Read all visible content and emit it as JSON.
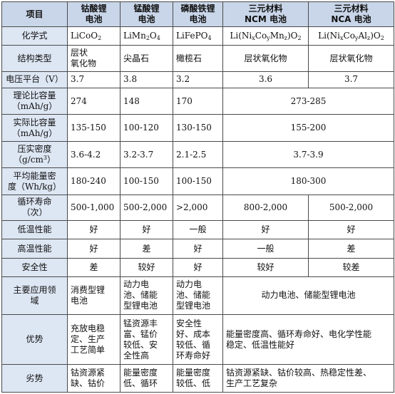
{
  "headers": {
    "item": "项目",
    "licoo2": [
      "钴酸锂",
      "电池"
    ],
    "limn2o4": [
      "锰酸锂",
      "电池"
    ],
    "lifepo4": [
      "磷酸铁锂",
      "电池"
    ],
    "ncm": [
      "三元材料",
      "NCM 电池"
    ],
    "nca": [
      "三元材料",
      "NCA 电池"
    ]
  },
  "formula": {
    "label": "化学式",
    "licoo2": [
      "LiCoO",
      "2",
      ""
    ],
    "limn2o4": [
      "LiMn",
      "2",
      "O",
      "4"
    ],
    "lifepo4": [
      "LiFePO",
      "4"
    ],
    "ncm": [
      "Li(Ni",
      "x",
      "Co",
      "y",
      "Mn",
      "z",
      ")O",
      "2"
    ],
    "nca": [
      "Li(Ni",
      "x",
      "Co",
      "y",
      "Al",
      "z",
      ")O",
      "2"
    ]
  },
  "structure": {
    "label": "结构类型",
    "licoo2": [
      "层状",
      "氧化物"
    ],
    "limn2o4": "尖晶石",
    "lifepo4": "橄榄石",
    "ncm": "层状氧化物",
    "nca": "层状氧化物"
  },
  "voltage": {
    "label": "电压平台（V）",
    "licoo2": "3.7",
    "limn2o4": "3.8",
    "lifepo4": "3.2",
    "ncm": "3.6",
    "nca": "3.7"
  },
  "theoretical_capacity": {
    "label": [
      "理论比容量",
      "（mAh/g）"
    ],
    "licoo2": "274",
    "limn2o4": "148",
    "lifepo4": "170",
    "ternary": "273-285"
  },
  "actual_capacity": {
    "label": [
      "实际比容量",
      "（mAh/g）"
    ],
    "licoo2": "135-150",
    "limn2o4": "100-120",
    "lifepo4": "130-150",
    "ternary": "155-200"
  },
  "compaction_density": {
    "label": [
      "压实密度",
      "（g/cm",
      "3",
      "）"
    ],
    "licoo2": "3.6-4.2",
    "limn2o4": "3.2-3.7",
    "lifepo4": "2.1-2.5",
    "ternary": "3.7-3.9"
  },
  "energy_density": {
    "label": [
      "平均能量密",
      "度（Wh/kg）"
    ],
    "licoo2": "180-240",
    "limn2o4": "100-150",
    "lifepo4": "100-150",
    "ternary": "180-300"
  },
  "cycle_life": {
    "label": [
      "循环寿命",
      "（次）"
    ],
    "licoo2": "500-1,000",
    "limn2o4": "500-2,000",
    "lifepo4": ">2,000",
    "ncm": "800-2,000",
    "nca": "500-2,000"
  },
  "low_temp": {
    "label": "低温性能",
    "licoo2": "好",
    "limn2o4": "好",
    "lifepo4": "一般",
    "ncm": "好",
    "nca": "好"
  },
  "high_temp": {
    "label": "高温性能",
    "licoo2": "好",
    "limn2o4": "差",
    "lifepo4": "好",
    "ncm": "一般",
    "nca": "差"
  },
  "safety": {
    "label": "安全性",
    "licoo2": "差",
    "limn2o4": "较好",
    "lifepo4": "好",
    "ncm": "较好",
    "nca": "较差"
  },
  "applications": {
    "label": [
      "主要应用领",
      "域"
    ],
    "licoo2": [
      "消费型锂",
      "电池"
    ],
    "limn2o4": [
      "动力电",
      "池、储能",
      "型锂电池"
    ],
    "lifepo4": [
      "动力电",
      "池、储能",
      "型锂电池"
    ],
    "ternary": "动力电池、储能型锂电池"
  },
  "advantages": {
    "label": "优势",
    "licoo2": [
      "充放电稳",
      "定、生产",
      "工艺简单"
    ],
    "limn2o4": [
      "锰资源丰",
      "富、锰价",
      "较低、安",
      "全性高"
    ],
    "lifepo4": [
      "安全性",
      "好、成本",
      "较低、循",
      "环寿命好"
    ],
    "ternary": [
      "能量密度高、循环寿命好、电化学性能",
      "稳定、低温性能好"
    ]
  },
  "disadvantages": {
    "label": "劣势",
    "licoo2": [
      "钴资源紧",
      "缺、钴价"
    ],
    "limn2o4": [
      "能量密度",
      "低、循环"
    ],
    "lifepo4": [
      "能量密度",
      "较低、低"
    ],
    "ternary": [
      "钴资源紧缺、钴价较高、热稳定性差、",
      "生产工艺复杂"
    ]
  }
}
